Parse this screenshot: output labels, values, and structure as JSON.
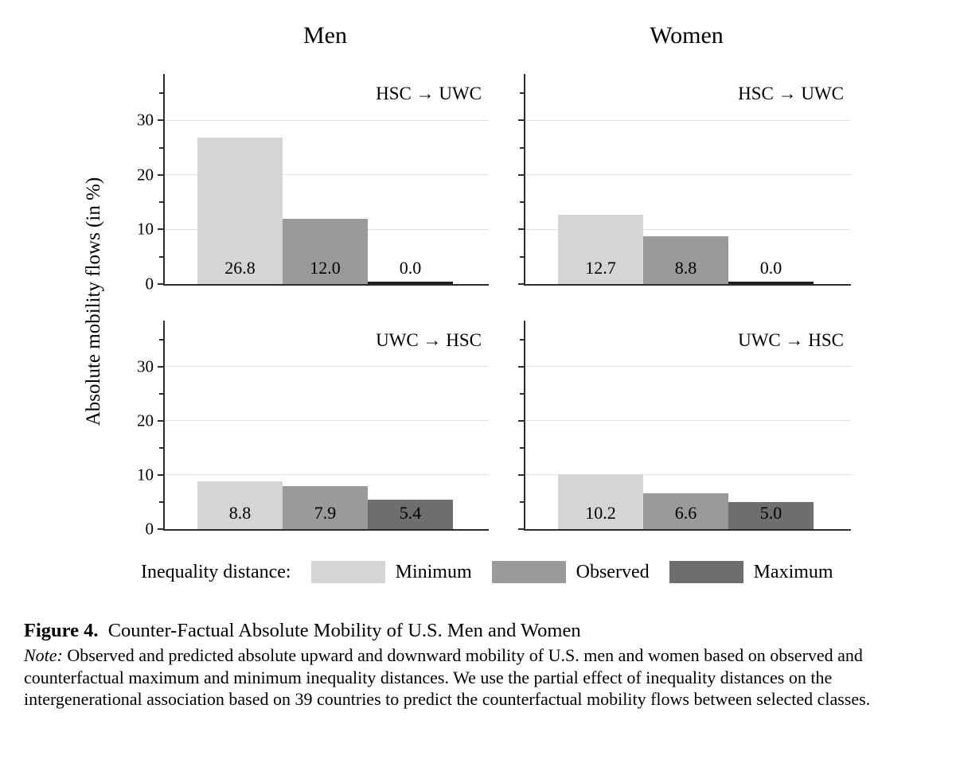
{
  "chart_data": {
    "type": "bar",
    "column_titles": [
      "Men",
      "Women"
    ],
    "ylabel": "Absolute mobility flows (in %)",
    "ylim": [
      0,
      38.5
    ],
    "yticks": [
      0,
      10,
      20,
      30
    ],
    "minor_yticks": [
      5,
      15,
      25,
      35
    ],
    "gridlines": [
      10,
      20,
      30
    ],
    "grid": "horizontal",
    "legend_position": "bottom",
    "series": [
      "Minimum",
      "Observed",
      "Maximum"
    ],
    "colors": {
      "minimum": "#d5d5d6",
      "observed": "#9a9a9b",
      "maximum": "#6e6e6f",
      "zero_bar": "#1f1f1f",
      "axis": "#2e2e2e",
      "gridline": "#e1e1e1"
    },
    "panels": [
      {
        "column": "Men",
        "flow": "HSC → UWC",
        "values": [
          26.8,
          12.0,
          0.0
        ],
        "labels": [
          "26.8",
          "12.0",
          "0.0"
        ]
      },
      {
        "column": "Women",
        "flow": "HSC → UWC",
        "values": [
          12.7,
          8.8,
          0.0
        ],
        "labels": [
          "12.7",
          "8.8",
          "0.0"
        ]
      },
      {
        "column": "Men",
        "flow": "UWC → HSC",
        "values": [
          8.8,
          7.9,
          5.4
        ],
        "labels": [
          "8.8",
          "7.9",
          "5.4"
        ]
      },
      {
        "column": "Women",
        "flow": "UWC → HSC",
        "values": [
          10.2,
          6.6,
          5.0
        ],
        "labels": [
          "10.2",
          "6.6",
          "5.0"
        ]
      }
    ]
  },
  "legend": {
    "title": "Inequality distance:",
    "items": [
      {
        "label": "Minimum",
        "color": "#d5d5d6"
      },
      {
        "label": "Observed",
        "color": "#9a9a9b"
      },
      {
        "label": "Maximum",
        "color": "#6e6e6f"
      }
    ]
  },
  "caption": {
    "label": "Figure 4.",
    "title": "Counter-Factual Absolute Mobility of U.S. Men and Women",
    "note_label": "Note:",
    "note": "Observed and predicted absolute upward and downward mobility of U.S. men and women based on observed and counterfactual maximum and minimum inequality distances. We use the partial effect of inequality distances on the intergenerational association based on 39 countries to predict the counterfactual mobility flows between selected classes."
  }
}
